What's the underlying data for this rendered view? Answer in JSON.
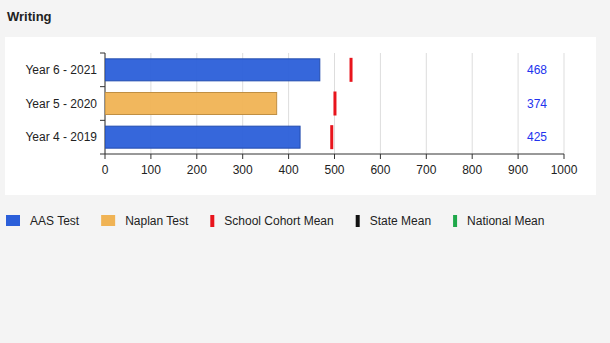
{
  "chart_data": {
    "type": "bar",
    "title": "Writing",
    "orientation": "horizontal",
    "categories": [
      "Year 6 - 2021",
      "Year 5 - 2020",
      "Year 4 - 2019"
    ],
    "series": [
      {
        "name": "AAS Test",
        "type": "bar",
        "color": "#2b5fd9",
        "values": [
          468,
          null,
          425
        ]
      },
      {
        "name": "Naplan Test",
        "type": "bar",
        "color": "#f0b354",
        "values": [
          null,
          374,
          null
        ]
      },
      {
        "name": "School Cohort Mean",
        "type": "scatter",
        "marker": "line",
        "color": "#e8141c",
        "values": [
          536,
          501,
          494
        ]
      },
      {
        "name": "State Mean",
        "type": "scatter",
        "marker": "line",
        "color": "#111111",
        "values": [
          null,
          null,
          null
        ]
      },
      {
        "name": "National Mean",
        "type": "scatter",
        "marker": "line",
        "color": "#1fa84a",
        "values": [
          null,
          null,
          null
        ]
      }
    ],
    "xlim": [
      0,
      1000
    ],
    "xticks": [
      0,
      100,
      200,
      300,
      400,
      500,
      600,
      700,
      800,
      900,
      1000
    ],
    "grid": true,
    "data_labels": true,
    "legend": "bottom"
  }
}
